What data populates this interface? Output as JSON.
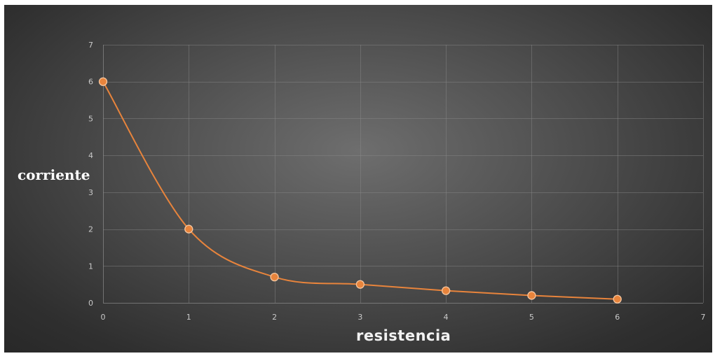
{
  "chart_data": {
    "type": "scatter",
    "line_style": "smooth",
    "marker": "circle",
    "title": "",
    "xlabel": "resistencia",
    "ylabel": "corriente",
    "xlim": [
      0,
      7
    ],
    "ylim": [
      0,
      7
    ],
    "xticks": [
      "0",
      "1",
      "2",
      "3",
      "4",
      "5",
      "6",
      "7"
    ],
    "yticks": [
      "0",
      "1",
      "2",
      "3",
      "4",
      "5",
      "6",
      "7"
    ],
    "grid": true,
    "legend": "none",
    "series": [
      {
        "x": [
          0,
          1,
          2,
          3,
          4,
          5,
          6
        ],
        "y": [
          6,
          2,
          0.7,
          0.5,
          0.33,
          0.2,
          0.1
        ],
        "color": "#e8843c"
      }
    ]
  },
  "colors": {
    "background_center": "#6e6e6e",
    "background_edge": "#262626",
    "series": "#e8843c",
    "label_text": "#ffffff"
  }
}
